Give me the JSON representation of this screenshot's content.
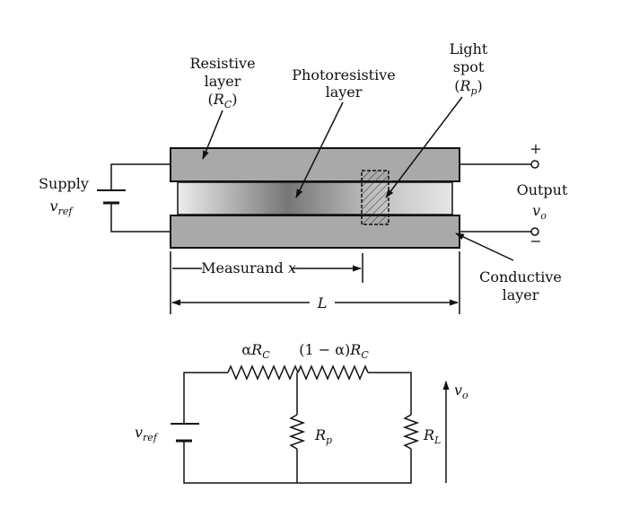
{
  "sensor": {
    "resistive_layer": {
      "line1": "Resistive",
      "line2": "layer",
      "symbol": "R",
      "sub": "C"
    },
    "photoresistive_layer": {
      "line1": "Photoresistive",
      "line2": "layer"
    },
    "light_spot": {
      "line1": "Light",
      "line2": "spot",
      "symbol": "R",
      "sub": "p"
    },
    "supply": {
      "label": "Supply",
      "symbol": "v",
      "sub": "ref"
    },
    "output": {
      "label": "Output",
      "symbol": "v",
      "sub": "o",
      "plus": "+",
      "minus": "−"
    },
    "conductive_layer": {
      "line1": "Conductive",
      "line2": "layer"
    },
    "measurand": {
      "label": "Measurand",
      "var": "x"
    },
    "length": {
      "var": "L"
    }
  },
  "circuit": {
    "r1": {
      "coef": "α",
      "symbol": "R",
      "sub": "C"
    },
    "r2": {
      "coef": "(1 − α)",
      "symbol": "R",
      "sub": "C"
    },
    "rp": {
      "symbol": "R",
      "sub": "p"
    },
    "rl": {
      "symbol": "R",
      "sub": "L"
    },
    "source": {
      "symbol": "v",
      "sub": "ref"
    },
    "vout": {
      "symbol": "v",
      "sub": "o"
    }
  },
  "colors": {
    "ink": "#111111",
    "layer_gray": "#a9a9a9",
    "gap_gray": "#d4d4d4"
  }
}
